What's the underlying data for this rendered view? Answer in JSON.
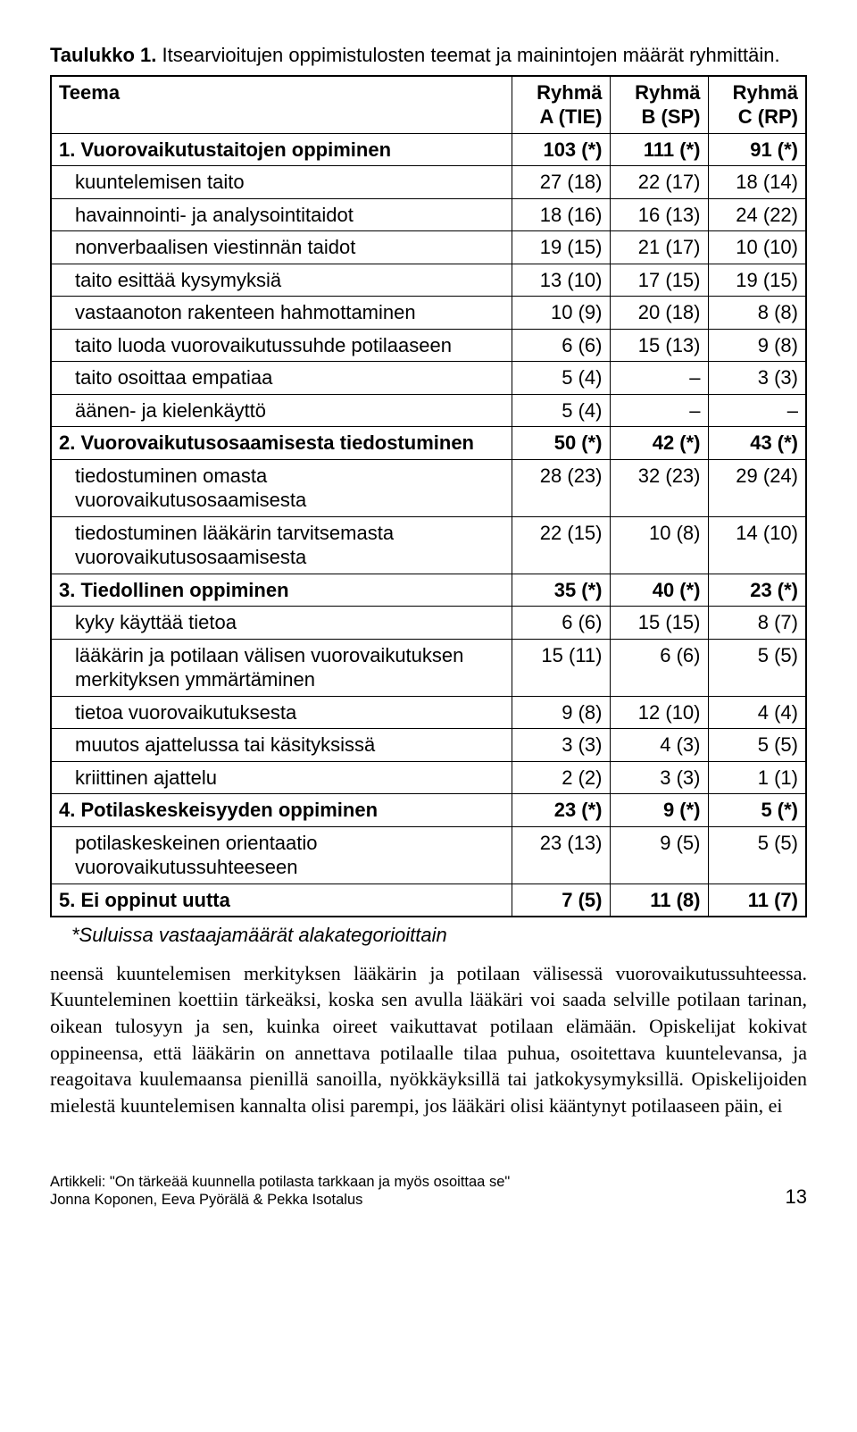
{
  "caption": {
    "lead": "Taulukko 1.",
    "rest": " Itsearvioitujen oppimistulosten teemat ja mainintojen määrät ryhmittäin."
  },
  "table": {
    "headers": [
      "Teema",
      "Ryhmä\nA (TIE)",
      "Ryhmä\nB (SP)",
      "Ryhmä\nC (RP)"
    ],
    "rows": [
      {
        "bold": true,
        "indent": false,
        "label": "1. Vuorovaikutustaitojen oppiminen",
        "c": [
          "103 (*)",
          "111 (*)",
          "91 (*)"
        ]
      },
      {
        "bold": false,
        "indent": true,
        "label": "kuuntelemisen taito",
        "c": [
          "27 (18)",
          "22 (17)",
          "18 (14)"
        ]
      },
      {
        "bold": false,
        "indent": true,
        "label": "havainnointi- ja analysointitaidot",
        "c": [
          "18 (16)",
          "16 (13)",
          "24 (22)"
        ]
      },
      {
        "bold": false,
        "indent": true,
        "label": "nonverbaalisen viestinnän taidot",
        "c": [
          "19 (15)",
          "21 (17)",
          "10 (10)"
        ]
      },
      {
        "bold": false,
        "indent": true,
        "label": "taito esittää kysymyksiä",
        "c": [
          "13 (10)",
          "17 (15)",
          "19 (15)"
        ]
      },
      {
        "bold": false,
        "indent": true,
        "label": "vastaanoton rakenteen hahmottaminen",
        "c": [
          "10 (9)",
          "20 (18)",
          "8 (8)"
        ]
      },
      {
        "bold": false,
        "indent": true,
        "label": "taito luoda vuorovaikutussuhde potilaaseen",
        "c": [
          "6 (6)",
          "15 (13)",
          "9 (8)"
        ]
      },
      {
        "bold": false,
        "indent": true,
        "label": "taito osoittaa empatiaa",
        "c": [
          "5 (4)",
          "–",
          "3 (3)"
        ]
      },
      {
        "bold": false,
        "indent": true,
        "label": "äänen- ja kielenkäyttö",
        "c": [
          "5 (4)",
          "–",
          "–"
        ]
      },
      {
        "bold": true,
        "indent": false,
        "label": "2. Vuorovaikutusosaamisesta tiedostuminen",
        "c": [
          "50 (*)",
          "42 (*)",
          "43 (*)"
        ]
      },
      {
        "bold": false,
        "indent": true,
        "label": "tiedostuminen omasta vuorovaikutusosaamisesta",
        "c": [
          "28 (23)",
          "32 (23)",
          "29 (24)"
        ]
      },
      {
        "bold": false,
        "indent": true,
        "label": "tiedostuminen lääkärin tarvitsemasta vuorovaikutusosaamisesta",
        "c": [
          "22 (15)",
          "10 (8)",
          "14 (10)"
        ]
      },
      {
        "bold": true,
        "indent": false,
        "label": "3. Tiedollinen oppiminen",
        "c": [
          "35 (*)",
          "40 (*)",
          "23 (*)"
        ]
      },
      {
        "bold": false,
        "indent": true,
        "label": "kyky käyttää tietoa",
        "c": [
          "6 (6)",
          "15 (15)",
          "8 (7)"
        ]
      },
      {
        "bold": false,
        "indent": true,
        "label": "lääkärin ja potilaan välisen vuorovaikutuksen merkityksen ymmärtäminen",
        "c": [
          "15 (11)",
          "6 (6)",
          "5 (5)"
        ]
      },
      {
        "bold": false,
        "indent": true,
        "label": "tietoa vuorovaikutuksesta",
        "c": [
          "9 (8)",
          "12 (10)",
          "4 (4)"
        ]
      },
      {
        "bold": false,
        "indent": true,
        "label": "muutos ajattelussa tai käsityksissä",
        "c": [
          "3 (3)",
          "4 (3)",
          "5 (5)"
        ]
      },
      {
        "bold": false,
        "indent": true,
        "label": "kriittinen ajattelu",
        "c": [
          "2 (2)",
          "3 (3)",
          "1 (1)"
        ]
      },
      {
        "bold": true,
        "indent": false,
        "label": "4. Potilaskeskeisyyden oppiminen",
        "c": [
          "23 (*)",
          "9 (*)",
          "5 (*)"
        ]
      },
      {
        "bold": false,
        "indent": true,
        "label": "potilaskeskeinen orientaatio vuorovaikutussuhteeseen",
        "c": [
          "23 (13)",
          "9 (5)",
          "5 (5)"
        ]
      },
      {
        "bold": true,
        "indent": false,
        "label": "5. Ei oppinut uutta",
        "c": [
          "7 (5)",
          "11 (8)",
          "11 (7)"
        ]
      }
    ]
  },
  "footnote": "*Suluissa vastaajamäärät alakategorioittain",
  "body": "neensä kuuntelemisen merkityksen lääkärin ja potilaan välisessä vuorovaikutussuhteessa. Kuunteleminen koettiin tärkeäksi, koska sen avulla lääkäri voi saada selville potilaan tarinan, oikean tulosyyn ja sen, kuinka oireet vaikuttavat potilaan elämään. Opiskelijat kokivat oppineensa, että lääkärin on annettava potilaalle tilaa puhua, osoitettava kuuntelevansa, ja reagoitava kuulemaansa pienillä sanoilla, nyökkäyksillä tai jatkokysymyksillä. Opiskelijoiden mielestä kuuntelemisen kannalta olisi parempi, jos lääkäri olisi kääntynyt potilaaseen päin, ei",
  "footer": {
    "line1": "Artikkeli: \"On tärkeää kuunnella potilasta tarkkaan ja myös osoittaa se\"",
    "line2": "Jonna Koponen, Eeva Pyörälä & Pekka Isotalus",
    "page": "13"
  }
}
